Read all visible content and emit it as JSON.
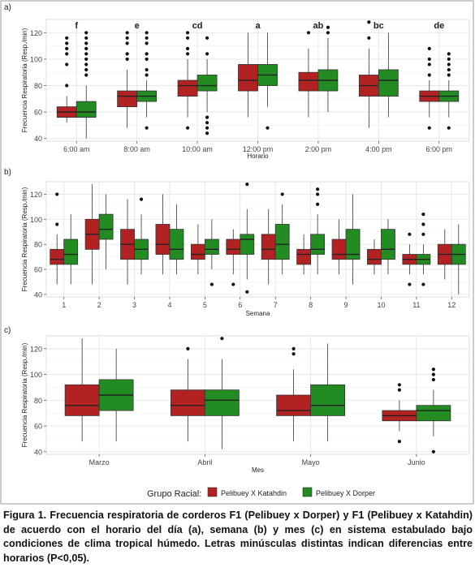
{
  "colors": {
    "katahdin": "#b22222",
    "dorper": "#228b22",
    "panel_bg": "#ffffff",
    "grid": "#e6e6e6",
    "frame": "#9a9a9a"
  },
  "legend": {
    "title": "Grupo Racial:",
    "items": [
      "Pelibuey X Katahdin",
      "Pelibuey X Dorper"
    ]
  },
  "caption": "Figura 1. Frecuencia respiratoria de corderos F1 (Pelibuey x Dorper)  y F1 (Pelibuey x Katahdin) de acuerdo con el horario del día (a), semana (b) y mes (c) en sistema estabulado bajo condiciones de clima tropical húmedo. Letras minúsculas distintas indican diferencias entre horarios (P<0,05).",
  "chart_data": [
    {
      "panel": "a)",
      "type": "box",
      "xlabel": "Horario",
      "ylabel": "Frecuencia Respiratoria (Resp./min)",
      "ylim": [
        38,
        130
      ],
      "yticks": [
        40,
        60,
        80,
        100,
        120
      ],
      "categories": [
        "6:00 am",
        "8:00 am",
        "10:00 am",
        "12:00 pm",
        "2:00 pm",
        "4:00 pm",
        "6:00 pm"
      ],
      "letters": [
        "f",
        "e",
        "cd",
        "a",
        "ab",
        "bc",
        "de"
      ],
      "series": [
        {
          "name": "Pelibuey X Katahdin",
          "boxes": [
            {
              "min": 52,
              "q1": 56,
              "med": 60,
              "q3": 64,
              "max": 72,
              "out": [
                80,
                96,
                104,
                108,
                112,
                116
              ]
            },
            {
              "min": 48,
              "q1": 64,
              "med": 72,
              "q3": 76,
              "max": 92,
              "out": [
                100,
                104,
                112,
                116,
                120
              ]
            },
            {
              "min": 56,
              "q1": 72,
              "med": 80,
              "q3": 84,
              "max": 100,
              "out": [
                48,
                104,
                108,
                116,
                120
              ]
            },
            {
              "min": 56,
              "q1": 76,
              "med": 84,
              "q3": 96,
              "max": 120,
              "out": []
            },
            {
              "min": 56,
              "q1": 76,
              "med": 84,
              "q3": 90,
              "max": 108,
              "out": [
                120
              ]
            },
            {
              "min": 48,
              "q1": 72,
              "med": 80,
              "q3": 88,
              "max": 108,
              "out": [
                116,
                128
              ]
            },
            {
              "min": 56,
              "q1": 68,
              "med": 72,
              "q3": 76,
              "max": 84,
              "out": [
                48,
                88,
                96,
                100,
                108
              ]
            }
          ]
        },
        {
          "name": "Pelibuey X Dorper",
          "boxes": [
            {
              "min": 40,
              "q1": 56,
              "med": 60,
              "q3": 68,
              "max": 80,
              "out": [
                88,
                92,
                96,
                100,
                104,
                108,
                112,
                116,
                120
              ]
            },
            {
              "min": 56,
              "q1": 68,
              "med": 72,
              "q3": 76,
              "max": 84,
              "out": [
                48,
                88,
                92,
                100,
                104,
                112,
                116,
                120
              ]
            },
            {
              "min": 60,
              "q1": 76,
              "med": 80,
              "q3": 88,
              "max": 100,
              "out": [
                44,
                48,
                52,
                56,
                104,
                116
              ]
            },
            {
              "min": 64,
              "q1": 80,
              "med": 88,
              "q3": 96,
              "max": 120,
              "out": [
                48
              ]
            },
            {
              "min": 60,
              "q1": 76,
              "med": 84,
              "q3": 92,
              "max": 116,
              "out": [
                120,
                124
              ]
            },
            {
              "min": 56,
              "q1": 72,
              "med": 84,
              "q3": 92,
              "max": 120,
              "out": []
            },
            {
              "min": 56,
              "q1": 68,
              "med": 72,
              "q3": 76,
              "max": 84,
              "out": [
                48,
                88,
                92,
                96,
                100,
                104
              ]
            }
          ]
        }
      ]
    },
    {
      "panel": "b)",
      "type": "box",
      "xlabel": "Semana",
      "ylabel": "Frecuencia Respiratoria (Resp./min)",
      "ylim": [
        38,
        130
      ],
      "yticks": [
        40,
        60,
        80,
        100,
        120
      ],
      "categories": [
        "1",
        "2",
        "3",
        "4",
        "5",
        "6",
        "7",
        "8",
        "9",
        "10",
        "11",
        "12"
      ],
      "series": [
        {
          "name": "Pelibuey X Katahdin",
          "boxes": [
            {
              "min": 48,
              "q1": 64,
              "med": 68,
              "q3": 76,
              "max": 88,
              "out": [
                96,
                120
              ]
            },
            {
              "min": 48,
              "q1": 76,
              "med": 88,
              "q3": 100,
              "max": 128,
              "out": []
            },
            {
              "min": 48,
              "q1": 68,
              "med": 80,
              "q3": 92,
              "max": 116,
              "out": []
            },
            {
              "min": 56,
              "q1": 72,
              "med": 80,
              "q3": 96,
              "max": 120,
              "out": []
            },
            {
              "min": 56,
              "q1": 68,
              "med": 72,
              "q3": 80,
              "max": 96,
              "out": []
            },
            {
              "min": 56,
              "q1": 72,
              "med": 76,
              "q3": 84,
              "max": 92,
              "out": [
                48
              ]
            },
            {
              "min": 48,
              "q1": 68,
              "med": 76,
              "q3": 88,
              "max": 108,
              "out": []
            },
            {
              "min": 56,
              "q1": 64,
              "med": 72,
              "q3": 76,
              "max": 88,
              "out": []
            },
            {
              "min": 56,
              "q1": 68,
              "med": 72,
              "q3": 84,
              "max": 100,
              "out": []
            },
            {
              "min": 56,
              "q1": 64,
              "med": 68,
              "q3": 76,
              "max": 84,
              "out": []
            },
            {
              "min": 56,
              "q1": 64,
              "med": 68,
              "q3": 72,
              "max": 80,
              "out": [
                48,
                88
              ]
            },
            {
              "min": 52,
              "q1": 64,
              "med": 72,
              "q3": 80,
              "max": 92,
              "out": []
            }
          ]
        },
        {
          "name": "Pelibuey X Dorper",
          "boxes": [
            {
              "min": 48,
              "q1": 64,
              "med": 72,
              "q3": 84,
              "max": 104,
              "out": []
            },
            {
              "min": 60,
              "q1": 84,
              "med": 92,
              "q3": 104,
              "max": 120,
              "out": []
            },
            {
              "min": 56,
              "q1": 68,
              "med": 76,
              "q3": 84,
              "max": 104,
              "out": [
                116
              ]
            },
            {
              "min": 56,
              "q1": 68,
              "med": 76,
              "q3": 92,
              "max": 112,
              "out": []
            },
            {
              "min": 60,
              "q1": 72,
              "med": 76,
              "q3": 84,
              "max": 100,
              "out": [
                48
              ]
            },
            {
              "min": 52,
              "q1": 72,
              "med": 84,
              "q3": 88,
              "max": 108,
              "out": [
                42,
                128
              ]
            },
            {
              "min": 56,
              "q1": 68,
              "med": 80,
              "q3": 96,
              "max": 112,
              "out": [
                120
              ]
            },
            {
              "min": 56,
              "q1": 72,
              "med": 76,
              "q3": 88,
              "max": 104,
              "out": [
                112,
                120,
                124
              ]
            },
            {
              "min": 48,
              "q1": 68,
              "med": 72,
              "q3": 92,
              "max": 120,
              "out": []
            },
            {
              "min": 56,
              "q1": 68,
              "med": 76,
              "q3": 92,
              "max": 100,
              "out": []
            },
            {
              "min": 56,
              "q1": 64,
              "med": 68,
              "q3": 72,
              "max": 80,
              "out": [
                48,
                88,
                96,
                104
              ]
            },
            {
              "min": 40,
              "q1": 64,
              "med": 72,
              "q3": 80,
              "max": 96,
              "out": []
            }
          ]
        }
      ]
    },
    {
      "panel": "c)",
      "type": "box",
      "xlabel": "Mes",
      "ylabel": "Frecuencia Respiratoria (Resp./min)",
      "ylim": [
        38,
        130
      ],
      "yticks": [
        40,
        60,
        80,
        100,
        120
      ],
      "categories": [
        "Marzo",
        "Abril",
        "Mayo",
        "Junio"
      ],
      "series": [
        {
          "name": "Pelibuey X Katahdin",
          "boxes": [
            {
              "min": 48,
              "q1": 68,
              "med": 76,
              "q3": 92,
              "max": 128,
              "out": []
            },
            {
              "min": 48,
              "q1": 68,
              "med": 76,
              "q3": 88,
              "max": 112,
              "out": [
                120
              ]
            },
            {
              "min": 48,
              "q1": 68,
              "med": 72,
              "q3": 84,
              "max": 104,
              "out": [
                116,
                120
              ]
            },
            {
              "min": 56,
              "q1": 64,
              "med": 68,
              "q3": 72,
              "max": 80,
              "out": [
                48,
                88,
                92
              ]
            }
          ]
        },
        {
          "name": "Pelibuey X Dorper",
          "boxes": [
            {
              "min": 48,
              "q1": 72,
              "med": 84,
              "q3": 96,
              "max": 120,
              "out": []
            },
            {
              "min": 42,
              "q1": 68,
              "med": 80,
              "q3": 88,
              "max": 112,
              "out": [
                128
              ]
            },
            {
              "min": 48,
              "q1": 68,
              "med": 76,
              "q3": 92,
              "max": 124,
              "out": []
            },
            {
              "min": 52,
              "q1": 64,
              "med": 72,
              "q3": 76,
              "max": 88,
              "out": [
                40,
                96,
                100,
                104
              ]
            }
          ]
        }
      ]
    }
  ]
}
